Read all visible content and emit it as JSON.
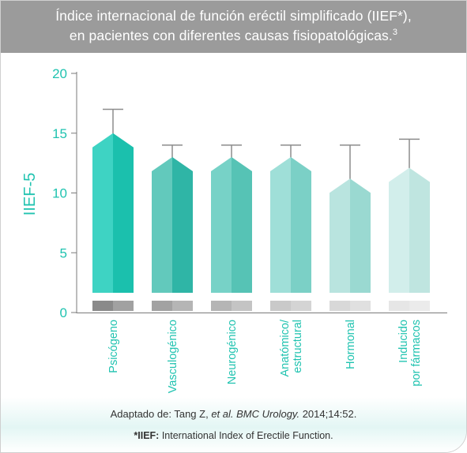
{
  "title": {
    "line1": "Índice internacional de función eréctil simplificado (IIEF*),",
    "line2": "en pacientes con diferentes causas fisiopatológicas.",
    "ref": "3"
  },
  "source": {
    "prefix": "Adaptado de: Tang Z, ",
    "etal": "et al.",
    "journal": "BMC Urology.",
    "rest": " 2014;14:52."
  },
  "footnote": {
    "key": "*IIEF:",
    "text": " International Index of Erectile Function."
  },
  "chart_data": {
    "type": "bar",
    "ylabel": "IIEF-5",
    "xlabel": "",
    "ylim": [
      0,
      20
    ],
    "yticks": [
      "0",
      "5",
      "10",
      "15",
      "20"
    ],
    "categories": [
      {
        "label": [
          "Psicógeno"
        ],
        "value": 15.0,
        "error_upper": 17.0
      },
      {
        "label": [
          "Vasculogénico"
        ],
        "value": 13.0,
        "error_upper": 14.0
      },
      {
        "label": [
          "Neurogénico"
        ],
        "value": 13.0,
        "error_upper": 14.0
      },
      {
        "label": [
          "Anatómico/",
          "estructural"
        ],
        "value": 13.0,
        "error_upper": 14.0
      },
      {
        "label": [
          "Hormonal"
        ],
        "value": 11.2,
        "error_upper": 14.0
      },
      {
        "label": [
          "Inducido",
          "por fármacos"
        ],
        "value": 12.1,
        "error_upper": 14.5
      }
    ],
    "colors": [
      {
        "left": "#3ed3c3",
        "right": "#1bc0ad",
        "base": "#8a8a8a"
      },
      {
        "left": "#62c9bc",
        "right": "#2fb5a6",
        "base": "#a2a2a2"
      },
      {
        "left": "#77d2c7",
        "right": "#56c3b5",
        "base": "#b5b5b5"
      },
      {
        "left": "#9fdfd8",
        "right": "#7bd0c6",
        "base": "#c9c9c9"
      },
      {
        "left": "#b9e4df",
        "right": "#9ad9d1",
        "base": "#d8d8d8"
      },
      {
        "left": "#d2eeeb",
        "right": "#bfe5e0",
        "base": "#e6e6e6"
      }
    ],
    "accent": "#20c3b0",
    "grid": false
  }
}
